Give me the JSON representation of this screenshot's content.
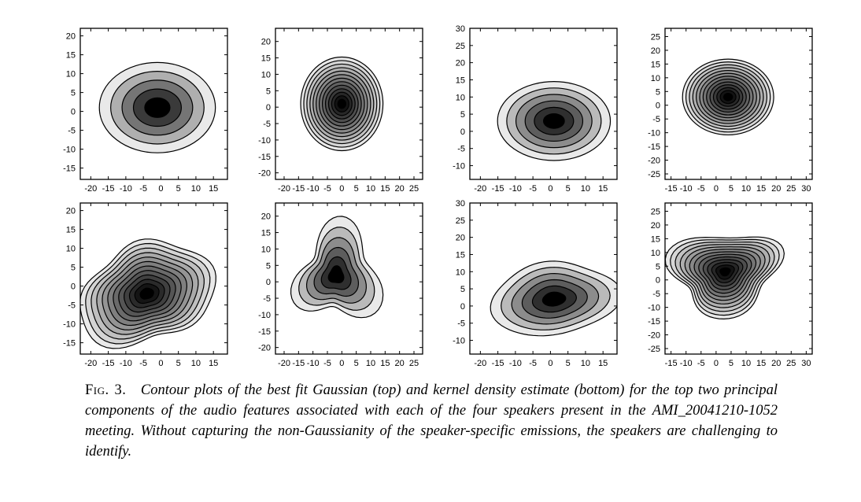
{
  "caption": {
    "label": "Fig. 3.",
    "text": "Contour plots of the best fit Gaussian (top) and kernel density estimate (bottom) for the top two principal components of the audio features associated with each of the four speakers present in the AMI_20041210-1052 meeting. Without capturing the non-Gaussianity of the speaker-specific emissions, the speakers are challenging to identify."
  },
  "colors": {
    "frame": "#000000",
    "darkest_fill": "#000000",
    "lightest_fill": "#e8e8e8"
  },
  "chart_data": [
    {
      "type": "contour",
      "row": "top",
      "column": 1,
      "model": "best fit Gaussian",
      "xlim": [
        -23,
        19
      ],
      "ylim": [
        -18,
        22
      ],
      "xticks": [
        -20,
        -15,
        -10,
        -5,
        0,
        5,
        10,
        15
      ],
      "yticks": [
        -15,
        -10,
        -5,
        0,
        5,
        10,
        15,
        20
      ],
      "center": [
        -1,
        1
      ],
      "spread": [
        7.2,
        5.2
      ],
      "levels": 5
    },
    {
      "type": "contour",
      "row": "top",
      "column": 2,
      "model": "best fit Gaussian",
      "xlim": [
        -23,
        28
      ],
      "ylim": [
        -22,
        24
      ],
      "xticks": [
        -20,
        -15,
        -10,
        -5,
        0,
        5,
        10,
        15,
        20,
        25
      ],
      "yticks": [
        -20,
        -15,
        -10,
        -5,
        0,
        5,
        10,
        15,
        20
      ],
      "center": [
        0,
        1
      ],
      "spread": [
        6.2,
        6.2
      ],
      "levels": 13
    },
    {
      "type": "contour",
      "row": "top",
      "column": 3,
      "model": "best fit Gaussian",
      "xlim": [
        -23,
        19
      ],
      "ylim": [
        -14,
        30
      ],
      "xticks": [
        -20,
        -15,
        -10,
        -5,
        0,
        5,
        10,
        15
      ],
      "yticks": [
        -10,
        -5,
        0,
        5,
        10,
        15,
        20,
        25,
        30
      ],
      "center": [
        1,
        3
      ],
      "spread": [
        7.0,
        5.0
      ],
      "levels": 6
    },
    {
      "type": "contour",
      "row": "top",
      "column": 4,
      "model": "best fit Gaussian",
      "xlim": [
        -17,
        32
      ],
      "ylim": [
        -27,
        28
      ],
      "xticks": [
        -15,
        -10,
        -5,
        0,
        5,
        10,
        15,
        20,
        25,
        30
      ],
      "yticks": [
        -25,
        -20,
        -15,
        -10,
        -5,
        0,
        5,
        10,
        15,
        20,
        25
      ],
      "center": [
        4,
        3
      ],
      "spread": [
        6.6,
        6.0
      ],
      "levels": 13
    },
    {
      "type": "contour",
      "row": "bottom",
      "column": 1,
      "model": "kernel density estimate",
      "xlim": [
        -23,
        19
      ],
      "ylim": [
        -18,
        22
      ],
      "xticks": [
        -20,
        -15,
        -10,
        -5,
        0,
        5,
        10,
        15
      ],
      "yticks": [
        -15,
        -10,
        -5,
        0,
        5,
        10,
        15,
        20
      ],
      "center": [
        -4,
        -2
      ],
      "spread": [
        8.0,
        6.0
      ],
      "levels": 12
    },
    {
      "type": "contour",
      "row": "bottom",
      "column": 2,
      "model": "kernel density estimate",
      "xlim": [
        -23,
        28
      ],
      "ylim": [
        -22,
        24
      ],
      "xticks": [
        -20,
        -15,
        -10,
        -5,
        0,
        5,
        10,
        15,
        20,
        25
      ],
      "yticks": [
        -20,
        -15,
        -10,
        -5,
        0,
        5,
        10,
        15,
        20
      ],
      "center": [
        -2,
        2
      ],
      "spread": [
        6.0,
        6.0
      ],
      "levels": 6
    },
    {
      "type": "contour",
      "row": "bottom",
      "column": 3,
      "model": "kernel density estimate",
      "xlim": [
        -23,
        19
      ],
      "ylim": [
        -14,
        30
      ],
      "xticks": [
        -20,
        -15,
        -10,
        -5,
        0,
        5,
        10,
        15
      ],
      "yticks": [
        -10,
        -5,
        0,
        5,
        10,
        15,
        20,
        25,
        30
      ],
      "center": [
        1,
        2
      ],
      "spread": [
        7.5,
        4.8
      ],
      "levels": 6
    },
    {
      "type": "contour",
      "row": "bottom",
      "column": 4,
      "model": "kernel density estimate",
      "xlim": [
        -17,
        32
      ],
      "ylim": [
        -27,
        28
      ],
      "xticks": [
        -15,
        -10,
        -5,
        0,
        5,
        10,
        15,
        20,
        25,
        30
      ],
      "yticks": [
        -25,
        -20,
        -15,
        -10,
        -5,
        0,
        5,
        10,
        15,
        20,
        25
      ],
      "center": [
        3,
        3
      ],
      "spread": [
        7.5,
        6.5
      ],
      "levels": 13
    }
  ]
}
